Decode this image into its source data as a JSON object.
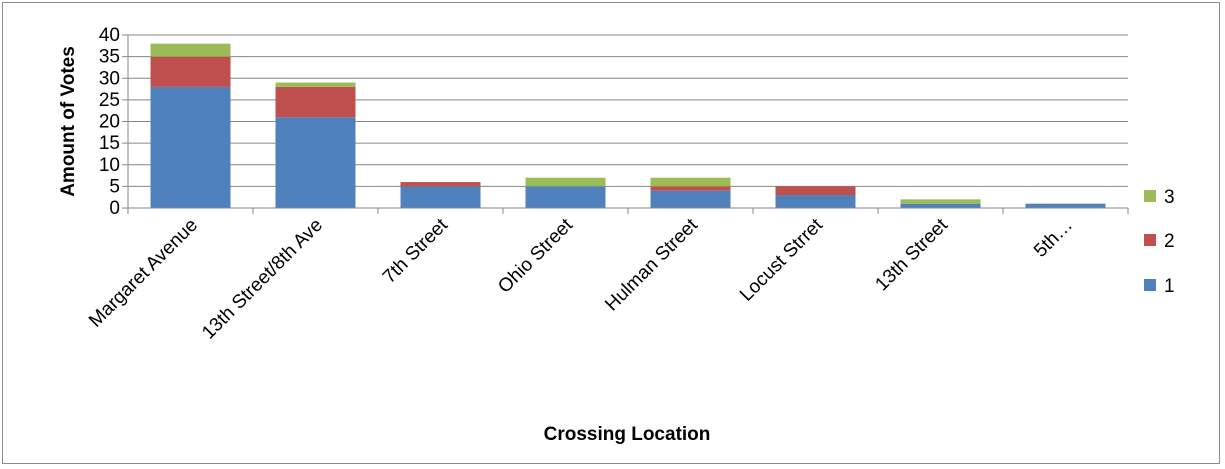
{
  "chart_data": {
    "type": "bar",
    "stacked": true,
    "title": "",
    "xlabel": "Crossing Location",
    "ylabel": "Amount of Votes",
    "ylim": [
      0,
      40
    ],
    "yticks": [
      0,
      5,
      10,
      15,
      20,
      25,
      30,
      35,
      40
    ],
    "grid": true,
    "legend_position": "right",
    "categories": [
      "Margaret Avenue",
      "13th Street/8th Ave",
      "7th Street",
      "Ohio Street",
      "Hulman Street",
      "Locust Strret",
      "13th Street",
      "5th…"
    ],
    "series": [
      {
        "name": "1",
        "color": "#4f81bd",
        "values": [
          28,
          21,
          5,
          5,
          4,
          3,
          1,
          1
        ]
      },
      {
        "name": "2",
        "color": "#c0504d",
        "values": [
          7,
          7,
          1,
          0,
          1,
          2,
          0,
          0
        ]
      },
      {
        "name": "3",
        "color": "#9bbb59",
        "values": [
          3,
          1,
          0,
          2,
          2,
          0,
          1,
          0
        ]
      }
    ]
  }
}
